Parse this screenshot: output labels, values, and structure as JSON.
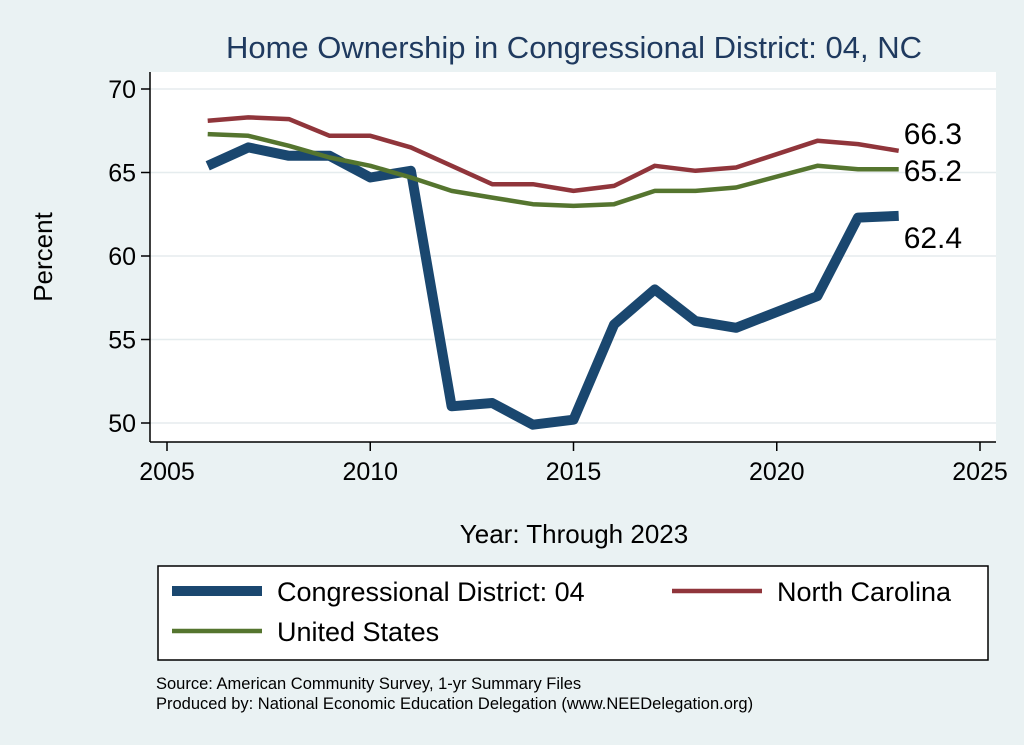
{
  "chart_data": {
    "type": "line",
    "title": "Home Ownership in Congressional District:  04, NC",
    "xlabel": "Year: Through 2023",
    "ylabel": "Percent",
    "xlim": [
      2005,
      2025
    ],
    "ylim": [
      50,
      70
    ],
    "x_ticks": [
      "2005",
      "2010",
      "2015",
      "2020",
      "2025"
    ],
    "y_ticks": [
      "50",
      "55",
      "60",
      "65",
      "70"
    ],
    "grid": true,
    "legend_position": "bottom",
    "x": [
      2006,
      2007,
      2008,
      2009,
      2010,
      2011,
      2012,
      2013,
      2014,
      2015,
      2016,
      2017,
      2018,
      2019,
      2021,
      2022,
      2023
    ],
    "series": [
      {
        "name": "Congressional District:  04",
        "color": "#1a476f",
        "values": [
          65.4,
          66.5,
          66.0,
          66.0,
          64.7,
          65.1,
          51.0,
          51.2,
          49.9,
          50.2,
          55.9,
          58.0,
          56.1,
          55.7,
          57.6,
          62.3,
          62.4
        ],
        "end_label": "62.4"
      },
      {
        "name": "North Carolina",
        "color": "#90353b",
        "values": [
          68.1,
          68.3,
          68.2,
          67.2,
          67.2,
          66.5,
          65.4,
          64.3,
          64.3,
          63.9,
          64.2,
          65.4,
          65.1,
          65.3,
          66.9,
          66.7,
          66.3
        ],
        "end_label": "66.3"
      },
      {
        "name": "United States",
        "color": "#55752f",
        "values": [
          67.3,
          67.2,
          66.6,
          65.9,
          65.4,
          64.7,
          63.9,
          63.5,
          63.1,
          63.0,
          63.1,
          63.9,
          63.9,
          64.1,
          65.4,
          65.2,
          65.2
        ],
        "end_label": "65.2"
      }
    ],
    "notes": [
      "Source: American Community Survey, 1-yr Summary Files",
      "Produced by: National Economic Education Delegation (www.NEEDelegation.org)"
    ]
  }
}
